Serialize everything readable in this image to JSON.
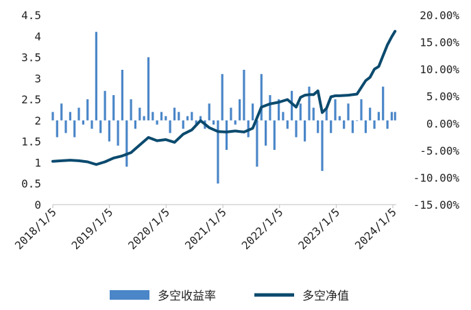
{
  "chart_data": {
    "type": "bar+line",
    "title": "",
    "x_tick_labels": [
      "2018/1/5",
      "2019/1/5",
      "2020/1/5",
      "2021/1/5",
      "2022/1/5",
      "2023/1/5",
      "2024/1/5"
    ],
    "x_range": [
      "2018/1/5",
      "2024/1/19"
    ],
    "y_left": {
      "ticks": [
        "0",
        "0.5",
        "1",
        "1.5",
        "2",
        "2.5",
        "3",
        "3.5",
        "4",
        "4.5"
      ],
      "ylim": [
        0,
        4.5
      ]
    },
    "y_right": {
      "ticks": [
        "-15.00%",
        "-10.00%",
        "-5.00%",
        "0.00%",
        "5.00%",
        "10.00%",
        "15.00%",
        "20.00%"
      ],
      "ylim": [
        -15,
        20
      ]
    },
    "grid": false,
    "legend": {
      "position": "bottom",
      "entries": [
        {
          "label": "多空收益率",
          "color": "#4a86c8",
          "kind": "bar"
        },
        {
          "label": "多空净值",
          "color": "#0b4a6e",
          "kind": "line"
        }
      ]
    },
    "series": [
      {
        "name": "多空收益率",
        "axis": "left",
        "baseline": 2,
        "color": "#4a86c8",
        "x": [
          "2018/1/5",
          "2018/2/2",
          "2018/3/2",
          "2018/3/30",
          "2018/4/27",
          "2018/5/25",
          "2018/6/22",
          "2018/7/20",
          "2018/8/17",
          "2018/9/14",
          "2018/10/12",
          "2018/11/9",
          "2018/12/7",
          "2019/1/4",
          "2019/2/1",
          "2019/3/1",
          "2019/3/29",
          "2019/4/26",
          "2019/5/24",
          "2019/6/21",
          "2019/7/19",
          "2019/8/16",
          "2019/9/13",
          "2019/10/11",
          "2019/11/8",
          "2019/12/6",
          "2020/1/3",
          "2020/1/31",
          "2020/2/28",
          "2020/3/27",
          "2020/4/24",
          "2020/5/22",
          "2020/6/19",
          "2020/7/17",
          "2020/8/14",
          "2020/9/11",
          "2020/10/9",
          "2020/11/6",
          "2020/12/4",
          "2021/1/1",
          "2021/1/29",
          "2021/2/26",
          "2021/3/26",
          "2021/4/23",
          "2021/5/21",
          "2021/6/18",
          "2021/7/16",
          "2021/8/13",
          "2021/9/10",
          "2021/10/8",
          "2021/11/5",
          "2021/12/3",
          "2021/12/31",
          "2022/1/28",
          "2022/2/25",
          "2022/3/25",
          "2022/4/22",
          "2022/5/20",
          "2022/6/17",
          "2022/7/15",
          "2022/8/12",
          "2022/9/9",
          "2022/10/7",
          "2022/11/4",
          "2022/12/2",
          "2022/12/30",
          "2023/1/27",
          "2023/2/24",
          "2023/3/24",
          "2023/4/21",
          "2023/5/19",
          "2023/6/16",
          "2023/7/14",
          "2023/8/11",
          "2023/9/8",
          "2023/10/6",
          "2023/11/3",
          "2023/12/1",
          "2023/12/29",
          "2024/1/19"
        ],
        "values": [
          2.2,
          1.6,
          2.4,
          1.7,
          2.2,
          1.6,
          2.3,
          1.9,
          2.5,
          1.8,
          4.1,
          1.7,
          2.7,
          1.5,
          2.6,
          1.4,
          3.2,
          0.9,
          2.5,
          1.8,
          2.3,
          2.1,
          3.5,
          2.2,
          1.9,
          2.2,
          2.1,
          1.7,
          2.3,
          2.2,
          1.8,
          2.1,
          2.2,
          1.9,
          2.1,
          1.8,
          2.4,
          1.9,
          0.5,
          3.1,
          1.3,
          2.3,
          1.9,
          2.5,
          3.2,
          1.6,
          2.4,
          0.9,
          3.1,
          1.4,
          2.6,
          1.3,
          2.5,
          2.2,
          1.8,
          2.7,
          1.6,
          2.4,
          1.5,
          2.8,
          2.3,
          1.7,
          0.8,
          2.3,
          1.7,
          2.5,
          2.1,
          1.8,
          2.4,
          1.7,
          2.0,
          2.5,
          1.7,
          2.3,
          1.8,
          2.2,
          2.8,
          1.8,
          2.2,
          2.2
        ]
      },
      {
        "name": "多空净值",
        "axis": "right",
        "color": "#0b4a6e",
        "x": [
          "2018/1/5",
          "2018/3/2",
          "2018/4/27",
          "2018/6/22",
          "2018/8/17",
          "2018/10/12",
          "2018/12/7",
          "2019/2/1",
          "2019/3/29",
          "2019/5/24",
          "2019/7/19",
          "2019/9/13",
          "2019/11/8",
          "2020/1/3",
          "2020/2/28",
          "2020/4/24",
          "2020/6/19",
          "2020/8/14",
          "2020/10/9",
          "2020/12/4",
          "2021/1/29",
          "2021/3/26",
          "2021/4/23",
          "2021/5/21",
          "2021/7/16",
          "2021/9/10",
          "2021/11/5",
          "2021/12/31",
          "2022/2/25",
          "2022/4/22",
          "2022/5/20",
          "2022/6/17",
          "2022/7/15",
          "2022/8/12",
          "2022/9/9",
          "2022/10/7",
          "2022/11/4",
          "2022/12/2",
          "2022/12/30",
          "2023/1/27",
          "2023/3/24",
          "2023/5/19",
          "2023/7/14",
          "2023/8/11",
          "2023/9/8",
          "2023/10/6",
          "2023/11/3",
          "2023/12/1",
          "2023/12/29",
          "2024/1/19"
        ],
        "values": [
          -7.0,
          -6.9,
          -6.8,
          -6.9,
          -7.1,
          -7.6,
          -7.1,
          -6.4,
          -6.0,
          -5.4,
          -4.0,
          -2.6,
          -3.2,
          -3.0,
          -3.5,
          -2.0,
          -1.2,
          0.5,
          -0.8,
          -1.5,
          -1.6,
          -1.4,
          -1.5,
          -1.6,
          -0.9,
          3.0,
          3.6,
          3.9,
          4.4,
          3.0,
          4.8,
          5.2,
          5.3,
          5.3,
          6.0,
          2.0,
          2.8,
          4.9,
          5.1,
          5.1,
          5.2,
          5.4,
          7.9,
          8.5,
          10.0,
          10.5,
          12.5,
          14.5,
          16.0,
          17.0
        ]
      }
    ]
  }
}
